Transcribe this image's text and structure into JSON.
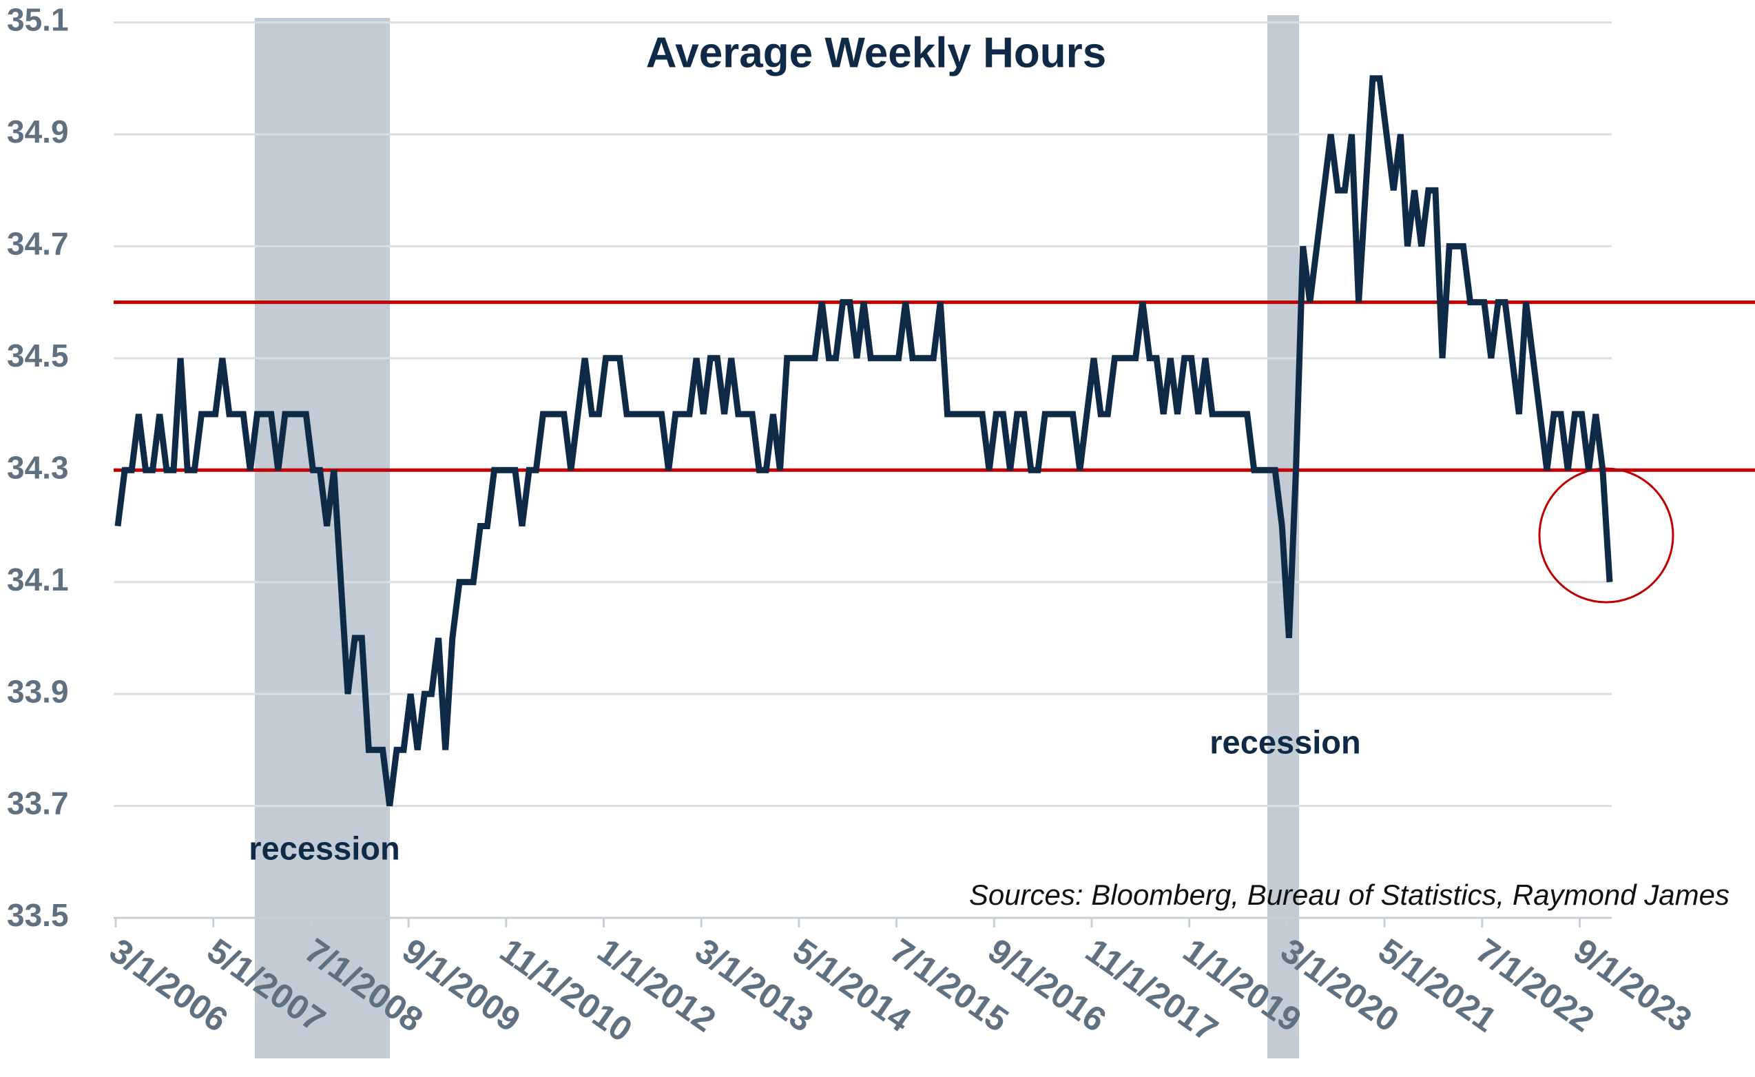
{
  "chart_data": {
    "type": "line",
    "title": "Average Weekly Hours",
    "categories": [
      "3/1/2006",
      null,
      null,
      null,
      null,
      null,
      null,
      null,
      null,
      null,
      null,
      null,
      null,
      null,
      "5/1/2007",
      null,
      null,
      null,
      null,
      null,
      null,
      null,
      null,
      null,
      null,
      null,
      null,
      null,
      "7/1/2008",
      null,
      null,
      null,
      null,
      null,
      null,
      null,
      null,
      null,
      null,
      null,
      null,
      null,
      "9/1/2009",
      null,
      null,
      null,
      null,
      null,
      null,
      null,
      null,
      null,
      null,
      null,
      null,
      null,
      "11/1/2010",
      null,
      null,
      null,
      null,
      null,
      null,
      null,
      null,
      null,
      null,
      null,
      null,
      null,
      "1/1/2012",
      null,
      null,
      null,
      null,
      null,
      null,
      null,
      null,
      null,
      null,
      null,
      null,
      null,
      "3/1/2013",
      null,
      null,
      null,
      null,
      null,
      null,
      null,
      null,
      null,
      null,
      null,
      null,
      null,
      "5/1/2014",
      null,
      null,
      null,
      null,
      null,
      null,
      null,
      null,
      null,
      null,
      null,
      null,
      null,
      "7/1/2015",
      null,
      null,
      null,
      null,
      null,
      null,
      null,
      null,
      null,
      null,
      null,
      null,
      null,
      "9/1/2016",
      null,
      null,
      null,
      null,
      null,
      null,
      null,
      null,
      null,
      null,
      null,
      null,
      null,
      "11/1/2017",
      null,
      null,
      null,
      null,
      null,
      null,
      null,
      null,
      null,
      null,
      null,
      null,
      null,
      "1/1/2019",
      null,
      null,
      null,
      null,
      null,
      null,
      null,
      null,
      null,
      null,
      null,
      null,
      null,
      "3/1/2020",
      null,
      null,
      null,
      null,
      null,
      null,
      null,
      null,
      null,
      null,
      null,
      null,
      null,
      "5/1/2021",
      null,
      null,
      null,
      null,
      null,
      null,
      null,
      null,
      null,
      null,
      null,
      null,
      null,
      "7/1/2022",
      null,
      null,
      null,
      null,
      null,
      null,
      null,
      null,
      null,
      null,
      null,
      null,
      null,
      "9/1/2023",
      null,
      null,
      null,
      null
    ],
    "series": [
      {
        "color": "#0f2a47",
        "values": [
          34.2,
          34.3,
          34.3,
          34.4,
          34.3,
          34.3,
          34.4,
          34.3,
          34.3,
          34.5,
          34.3,
          34.3,
          34.4,
          34.4,
          34.4,
          34.5,
          34.4,
          34.4,
          34.4,
          34.3,
          34.4,
          34.4,
          34.4,
          34.3,
          34.4,
          34.4,
          34.4,
          34.4,
          34.3,
          34.3,
          34.2,
          34.3,
          34.1,
          33.9,
          34.0,
          34.0,
          33.8,
          33.8,
          33.8,
          33.7,
          33.8,
          33.8,
          33.9,
          33.8,
          33.9,
          33.9,
          34.0,
          33.8,
          34.0,
          34.1,
          34.1,
          34.1,
          34.2,
          34.2,
          34.3,
          34.3,
          34.3,
          34.3,
          34.2,
          34.3,
          34.3,
          34.4,
          34.4,
          34.4,
          34.4,
          34.3,
          34.4,
          34.5,
          34.4,
          34.4,
          34.5,
          34.5,
          34.5,
          34.4,
          34.4,
          34.4,
          34.4,
          34.4,
          34.4,
          34.3,
          34.4,
          34.4,
          34.4,
          34.5,
          34.4,
          34.5,
          34.5,
          34.4,
          34.5,
          34.4,
          34.4,
          34.4,
          34.3,
          34.3,
          34.4,
          34.3,
          34.5,
          34.5,
          34.5,
          34.5,
          34.5,
          34.6,
          34.5,
          34.5,
          34.6,
          34.6,
          34.5,
          34.6,
          34.5,
          34.5,
          34.5,
          34.5,
          34.5,
          34.6,
          34.5,
          34.5,
          34.5,
          34.5,
          34.6,
          34.4,
          34.4,
          34.4,
          34.4,
          34.4,
          34.4,
          34.3,
          34.4,
          34.4,
          34.3,
          34.4,
          34.4,
          34.3,
          34.3,
          34.4,
          34.4,
          34.4,
          34.4,
          34.4,
          34.3,
          34.4,
          34.5,
          34.4,
          34.4,
          34.5,
          34.5,
          34.5,
          34.5,
          34.6,
          34.5,
          34.5,
          34.4,
          34.5,
          34.4,
          34.5,
          34.5,
          34.4,
          34.5,
          34.4,
          34.4,
          34.4,
          34.4,
          34.4,
          34.4,
          34.3,
          34.3,
          34.3,
          34.3,
          34.2,
          34.0,
          34.3,
          34.7,
          34.6,
          34.7,
          34.8,
          34.9,
          34.8,
          34.8,
          34.9,
          34.6,
          34.8,
          35.0,
          35.0,
          34.9,
          34.8,
          34.9,
          34.7,
          34.8,
          34.7,
          34.8,
          34.8,
          34.5,
          34.7,
          34.7,
          34.7,
          34.6,
          34.6,
          34.6,
          34.5,
          34.6,
          34.6,
          34.5,
          34.4,
          34.6,
          34.5,
          34.4,
          34.3,
          34.4,
          34.4,
          34.3,
          34.4,
          34.4,
          34.3,
          34.4,
          34.3,
          34.1
        ]
      }
    ],
    "ylim": [
      33.5,
      35.1
    ],
    "yticks": [
      33.5,
      33.7,
      33.9,
      34.1,
      34.3,
      34.5,
      34.7,
      34.9,
      35.1
    ],
    "grid": true,
    "reference_lines": {
      "color": "#c00000",
      "values": [
        34.6,
        34.3
      ]
    },
    "annotations": [
      "recession",
      "recession",
      "Sources: Bloomberg, Bureau of Statistics, Raymond James"
    ]
  }
}
